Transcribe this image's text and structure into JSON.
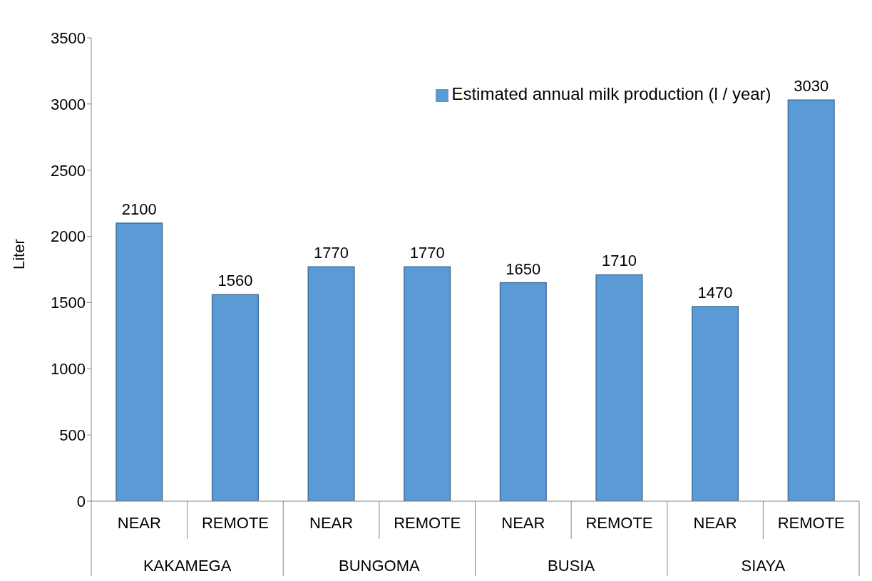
{
  "chart_data": {
    "type": "bar",
    "ylabel": "Liter",
    "categories": [
      "NEAR",
      "REMOTE",
      "NEAR",
      "REMOTE",
      "NEAR",
      "REMOTE",
      "NEAR",
      "REMOTE"
    ],
    "series": [
      {
        "name": "Estimated annual milk production (l / year)",
        "color": "#5b9bd5",
        "values": [
          2100,
          1560,
          1770,
          1770,
          1650,
          1710,
          1470,
          3030
        ]
      }
    ],
    "annotations": [
      "KAKAMEGA",
      "BUNGOMA",
      "BUSIA",
      "SIAYA"
    ],
    "ylim": [
      0,
      3500
    ],
    "yticks": [
      0,
      500,
      1000,
      1500,
      2000,
      2500,
      3000,
      3500
    ],
    "data_labels": true,
    "grid": false,
    "legend": "top"
  }
}
